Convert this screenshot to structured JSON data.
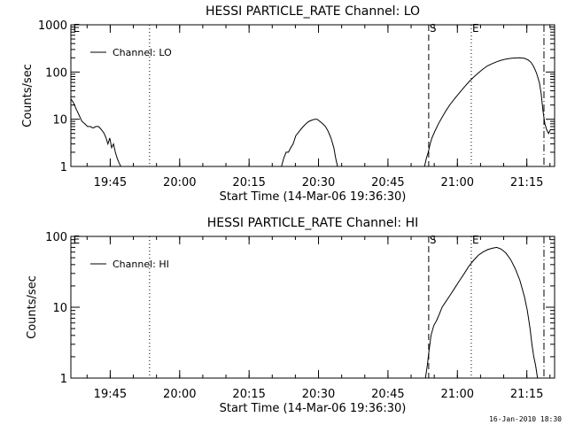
{
  "footer_timestamp": "16-Jan-2010 18:30",
  "chart_data": [
    {
      "type": "line",
      "title": "HESSI PARTICLE_RATE Channel: LO",
      "xlabel": "Start Time (14-Mar-06 19:36:30)",
      "ylabel": "Counts/sec",
      "y_scale": "log",
      "ylim": [
        1,
        1000
      ],
      "y_ticks": [
        1,
        10,
        100,
        1000
      ],
      "y_tick_labels": [
        "1",
        "10",
        "100",
        "1000"
      ],
      "x_unit": "minutes after 19:36:30",
      "xlim": [
        0,
        100
      ],
      "x_ticks": [
        8.5,
        23.5,
        38.5,
        53.5,
        68.5,
        83.5,
        98.5
      ],
      "x_tick_labels": [
        "19:45",
        "20:00",
        "20:15",
        "20:30",
        "20:45",
        "21:00",
        "21:15"
      ],
      "legend": {
        "label": "Channel: LO",
        "position": "top-left"
      },
      "markers": [
        {
          "label": "E",
          "x": 0.3,
          "style": "none"
        },
        {
          "label": "",
          "x": 17.0,
          "style": "dotted"
        },
        {
          "label": "S",
          "x": 77.3,
          "style": "dashed"
        },
        {
          "label": "E",
          "x": 86.5,
          "style": "dotted"
        },
        {
          "label": "",
          "x": 102.2,
          "style": "dashdot"
        }
      ],
      "series": [
        {
          "name": "Channel: LO",
          "segments": [
            [
              [
                0,
                27
              ],
              [
                0.6,
                22
              ],
              [
                1.2,
                16
              ],
              [
                1.8,
                12
              ],
              [
                2.4,
                9
              ],
              [
                3,
                8
              ],
              [
                3.6,
                7
              ],
              [
                4.2,
                7
              ],
              [
                4.8,
                6.5
              ],
              [
                5.4,
                7
              ],
              [
                6,
                7
              ],
              [
                6.6,
                6
              ],
              [
                7.2,
                5
              ],
              [
                7.6,
                4
              ],
              [
                8.0,
                3
              ],
              [
                8.4,
                4
              ],
              [
                8.8,
                2.5
              ],
              [
                9.2,
                3
              ],
              [
                9.6,
                2
              ],
              [
                10.0,
                1.5
              ],
              [
                10.4,
                1.2
              ],
              [
                10.8,
                1
              ]
            ],
            [
              [
                45.5,
                1
              ],
              [
                46,
                1.5
              ],
              [
                46.5,
                2
              ],
              [
                47,
                2
              ],
              [
                47.5,
                2.5
              ],
              [
                48,
                3
              ],
              [
                48.6,
                4.5
              ],
              [
                49,
                5
              ],
              [
                49.6,
                6
              ],
              [
                50.2,
                7
              ],
              [
                50.8,
                8
              ],
              [
                51.4,
                9
              ],
              [
                52,
                9.5
              ],
              [
                52.6,
                10
              ],
              [
                53.2,
                10
              ],
              [
                53.8,
                9
              ],
              [
                54.4,
                8
              ],
              [
                55,
                7
              ],
              [
                55.6,
                5.5
              ],
              [
                56.2,
                4
              ],
              [
                56.8,
                2.5
              ],
              [
                57.2,
                1.5
              ],
              [
                57.6,
                1
              ]
            ],
            [
              [
                76.4,
                1
              ],
              [
                76.8,
                1.5
              ],
              [
                77.2,
                2
              ],
              [
                77.6,
                3
              ],
              [
                78,
                4
              ],
              [
                78.6,
                5.5
              ],
              [
                79.4,
                8
              ],
              [
                80.2,
                11
              ],
              [
                81,
                15
              ],
              [
                82,
                21
              ],
              [
                83,
                28
              ],
              [
                84,
                37
              ],
              [
                85,
                48
              ],
              [
                86,
                62
              ],
              [
                87,
                78
              ],
              [
                88,
                95
              ],
              [
                89,
                115
              ],
              [
                90,
                135
              ],
              [
                91,
                150
              ],
              [
                92,
                165
              ],
              [
                93,
                178
              ],
              [
                94,
                188
              ],
              [
                95,
                195
              ],
              [
                96,
                198
              ],
              [
                97,
                200
              ],
              [
                98,
                195
              ],
              [
                98.8,
                180
              ],
              [
                99.4,
                160
              ],
              [
                100,
                130
              ],
              [
                100.6,
                95
              ],
              [
                101.2,
                60
              ],
              [
                101.6,
                35
              ],
              [
                102,
                15
              ],
              [
                102.4,
                8
              ],
              [
                102.8,
                6
              ],
              [
                103.2,
                5
              ],
              [
                103.6,
                6
              ]
            ]
          ]
        }
      ]
    },
    {
      "type": "line",
      "title": "HESSI PARTICLE_RATE Channel: HI",
      "xlabel": "Start Time (14-Mar-06 19:36:30)",
      "ylabel": "Counts/sec",
      "y_scale": "log",
      "ylim": [
        1,
        100
      ],
      "y_ticks": [
        1,
        10,
        100
      ],
      "y_tick_labels": [
        "1",
        "10",
        "100"
      ],
      "x_unit": "minutes after 19:36:30",
      "xlim": [
        0,
        100
      ],
      "x_ticks": [
        8.5,
        23.5,
        38.5,
        53.5,
        68.5,
        83.5,
        98.5
      ],
      "x_tick_labels": [
        "19:45",
        "20:00",
        "20:15",
        "20:30",
        "20:45",
        "21:00",
        "21:15"
      ],
      "legend": {
        "label": "Channel: HI",
        "position": "top-left"
      },
      "markers": [
        {
          "label": "E",
          "x": 0.3,
          "style": "none"
        },
        {
          "label": "",
          "x": 17.0,
          "style": "dotted"
        },
        {
          "label": "S",
          "x": 77.3,
          "style": "dashed"
        },
        {
          "label": "E",
          "x": 86.5,
          "style": "dotted"
        },
        {
          "label": "",
          "x": 102.2,
          "style": "dashdot"
        }
      ],
      "series": [
        {
          "name": "Channel: HI",
          "segments": [
            [
              [
                76.6,
                1
              ],
              [
                77,
                1.5
              ],
              [
                77.4,
                2.5
              ],
              [
                77.8,
                4
              ],
              [
                78.4,
                5.5
              ],
              [
                79,
                6.5
              ],
              [
                79.6,
                8
              ],
              [
                80.2,
                10
              ],
              [
                81,
                12
              ],
              [
                82,
                15
              ],
              [
                83,
                19
              ],
              [
                84,
                24
              ],
              [
                85,
                30
              ],
              [
                86,
                38
              ],
              [
                87,
                46
              ],
              [
                88,
                54
              ],
              [
                89,
                60
              ],
              [
                90,
                65
              ],
              [
                91,
                68
              ],
              [
                92,
                70
              ],
              [
                93,
                66
              ],
              [
                94,
                58
              ],
              [
                95,
                47
              ],
              [
                96,
                35
              ],
              [
                97,
                24
              ],
              [
                98,
                14
              ],
              [
                98.6,
                9
              ],
              [
                99.2,
                5
              ],
              [
                99.6,
                3
              ],
              [
                100,
                2
              ],
              [
                100.4,
                1.5
              ],
              [
                100.8,
                1
              ]
            ]
          ]
        }
      ]
    }
  ]
}
